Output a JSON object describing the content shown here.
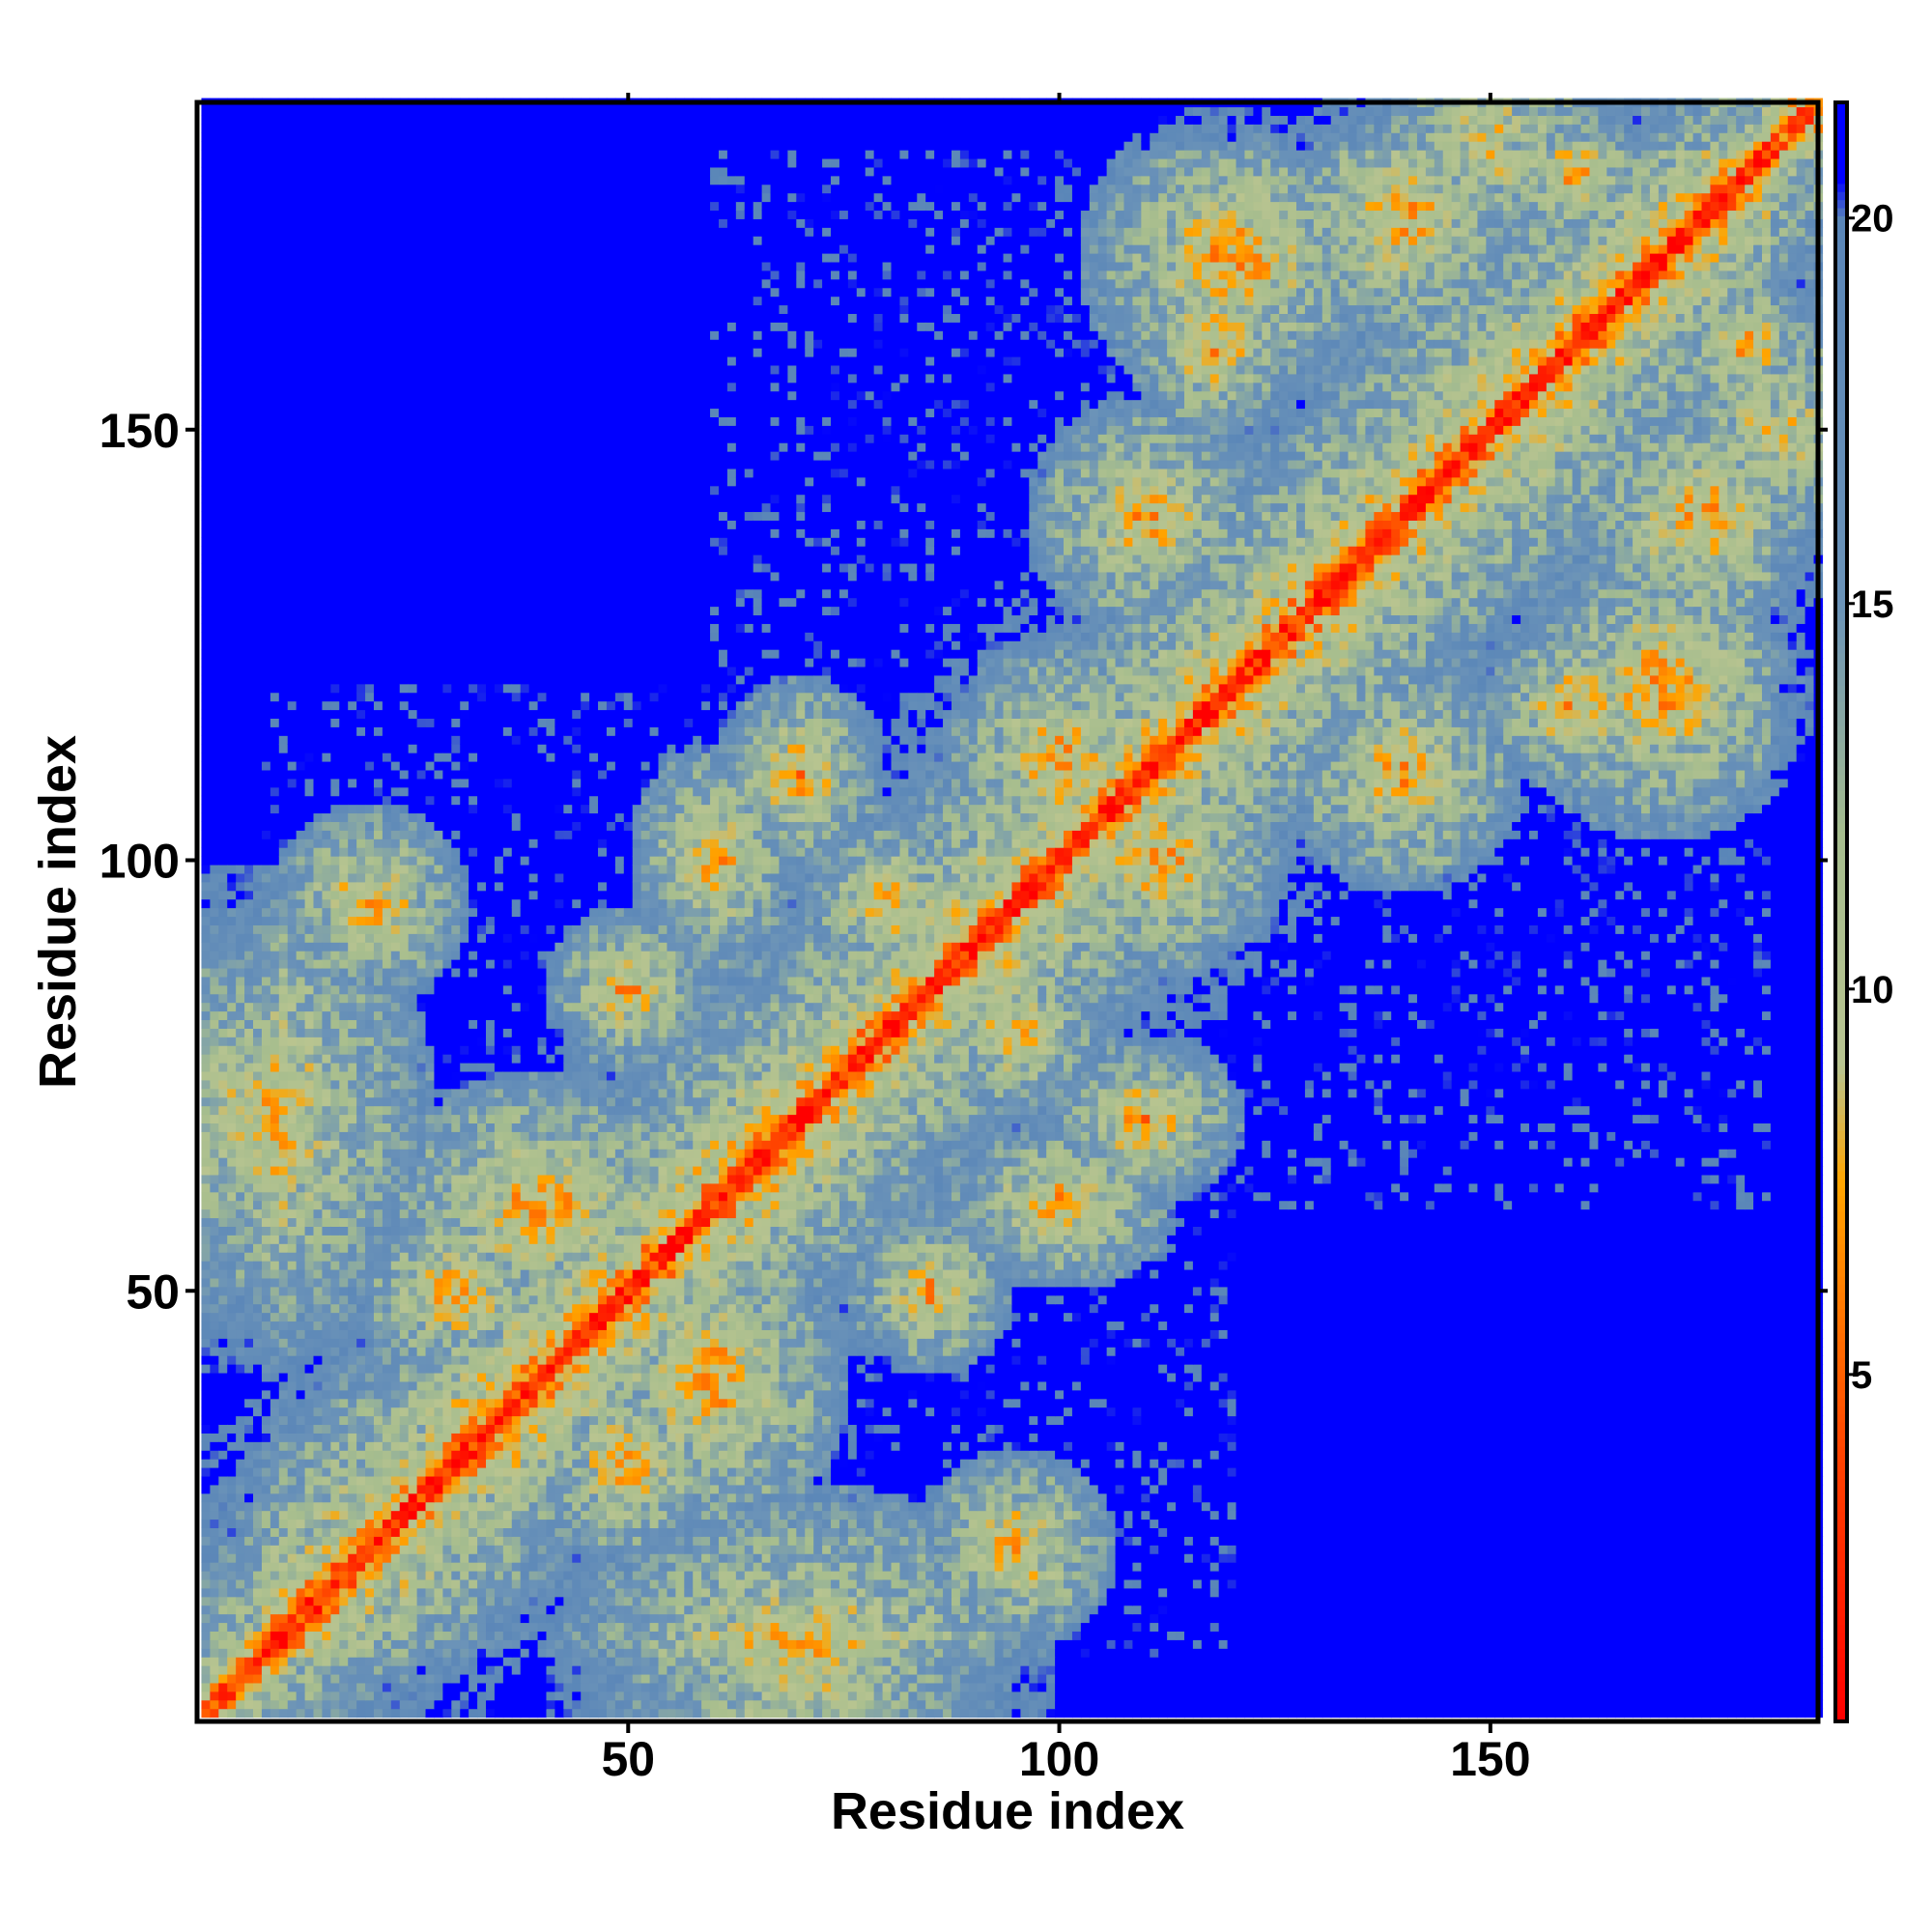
{
  "chart_data": {
    "type": "heatmap",
    "title": "",
    "xlabel": "Residue index",
    "ylabel": "Residue index",
    "residue_count": 188,
    "xlim": [
      1,
      188
    ],
    "ylim": [
      1,
      188
    ],
    "x_ticks": [
      50,
      100,
      150
    ],
    "x_tick_labels": [
      "50",
      "100",
      "150"
    ],
    "y_ticks": [
      50,
      100,
      150
    ],
    "y_tick_labels": [
      "50",
      "100",
      "150"
    ],
    "colorbar": {
      "range": [
        0.5,
        21.5
      ],
      "ticks": [
        5,
        10,
        15,
        20
      ],
      "tick_labels": [
        "5",
        "10",
        "15",
        "20"
      ],
      "stops": [
        {
          "value": 0.5,
          "color": "#ff0000"
        },
        {
          "value": 4.0,
          "color": "#ff4400"
        },
        {
          "value": 7.5,
          "color": "#ffa500"
        },
        {
          "value": 9.0,
          "color": "#b8c490"
        },
        {
          "value": 12.0,
          "color": "#a6bd8e"
        },
        {
          "value": 15.0,
          "color": "#6b93b8"
        },
        {
          "value": 20.0,
          "color": "#5a86b8"
        },
        {
          "value": 20.5,
          "color": "#0000ff"
        },
        {
          "value": 21.5,
          "color": "#0000ff"
        }
      ]
    },
    "colors": {
      "contact": "#ff0000",
      "near": "#ffa500",
      "mid": "#a6bd8e",
      "far": "#5a86b8",
      "none": "#0000ff"
    },
    "legend": "right",
    "grid": false
  }
}
